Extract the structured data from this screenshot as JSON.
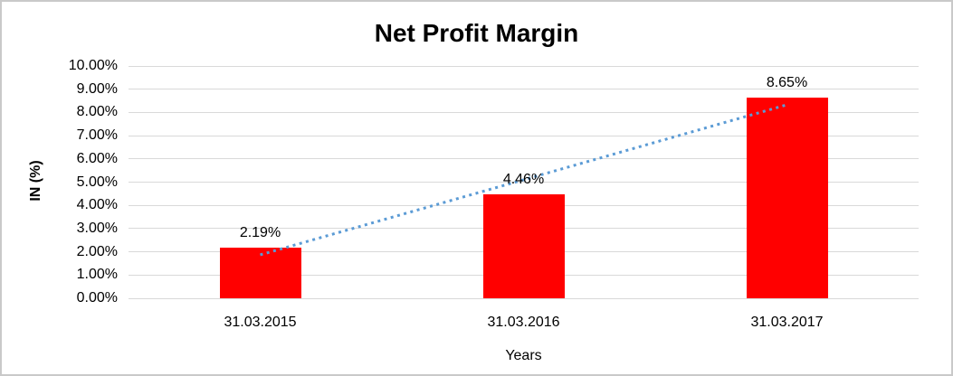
{
  "chart_data": {
    "type": "bar",
    "title": "Net Profit Margin",
    "xlabel": "Years",
    "ylabel": "IN (%)",
    "categories": [
      "31.03.2015",
      "31.03.2016",
      "31.03.2017"
    ],
    "values": [
      2.19,
      4.46,
      8.65
    ],
    "value_labels": [
      "2.19%",
      "4.46%",
      "8.65%"
    ],
    "ylim": [
      0,
      10
    ],
    "yticks": [
      {
        "value": 0,
        "label": "0.00%"
      },
      {
        "value": 1,
        "label": "1.00%"
      },
      {
        "value": 2,
        "label": "2.00%"
      },
      {
        "value": 3,
        "label": "3.00%"
      },
      {
        "value": 4,
        "label": "4.00%"
      },
      {
        "value": 5,
        "label": "5.00%"
      },
      {
        "value": 6,
        "label": "6.00%"
      },
      {
        "value": 7,
        "label": "7.00%"
      },
      {
        "value": 8,
        "label": "8.00%"
      },
      {
        "value": 9,
        "label": "9.00%"
      },
      {
        "value": 10,
        "label": "10.00%"
      }
    ],
    "grid": true,
    "legend": "none",
    "trendline": {
      "type": "linear",
      "style": "dotted",
      "points": [
        {
          "category_index": 0,
          "value": 1.87
        },
        {
          "category_index": 2,
          "value": 8.33
        }
      ]
    }
  },
  "colors": {
    "bar": "#FF0000",
    "trendline": "#5B9BD5",
    "gridline": "#D9D9D9",
    "border": "#C9C9C9",
    "text": "#000000",
    "background": "#FFFFFF"
  }
}
